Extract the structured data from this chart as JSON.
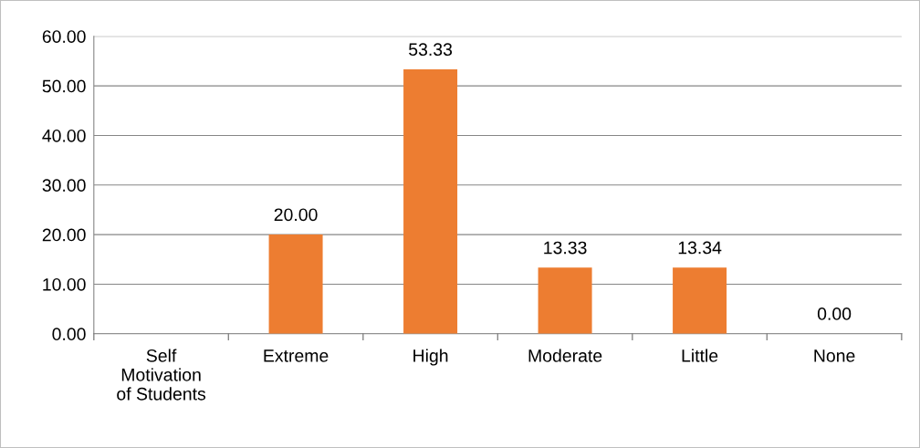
{
  "chart_data": {
    "type": "bar",
    "categories": [
      "Self Motivation of Students",
      "Extreme",
      "High",
      "Moderate",
      "Little",
      "None"
    ],
    "values": [
      null,
      20.0,
      53.33,
      13.33,
      13.34,
      0.0
    ],
    "value_labels": [
      null,
      "20.00",
      "53.33",
      "13.33",
      "13.34",
      "0.00"
    ],
    "color": "#ed7d31",
    "ylim": [
      0,
      60
    ],
    "yticks": [
      {
        "value": 0,
        "label": "0.00"
      },
      {
        "value": 10,
        "label": "10.00"
      },
      {
        "value": 20,
        "label": "20.00"
      },
      {
        "value": 30,
        "label": "30.00"
      },
      {
        "value": 40,
        "label": "40.00"
      },
      {
        "value": 50,
        "label": "50.00"
      },
      {
        "value": 60,
        "label": "60.00"
      }
    ],
    "grid": "y",
    "legend": false
  }
}
